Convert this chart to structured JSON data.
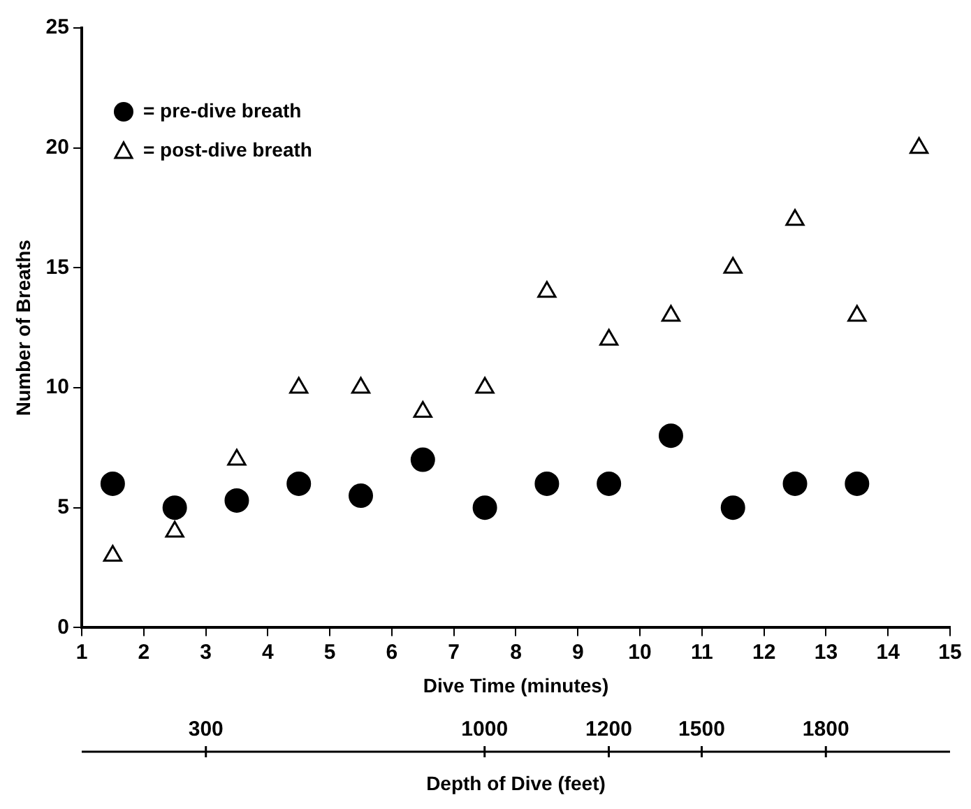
{
  "chart_data": {
    "type": "scatter",
    "xlabel": "Dive Time (minutes)",
    "ylabel": "Number of Breaths",
    "x2label": "Depth of Dive (feet)",
    "xlim": [
      1,
      15
    ],
    "xticks": [
      1,
      2,
      3,
      4,
      5,
      6,
      7,
      8,
      9,
      10,
      11,
      12,
      13,
      14,
      15
    ],
    "ylim": [
      0,
      25
    ],
    "yticks": [
      0,
      5,
      10,
      15,
      20,
      25
    ],
    "annotations": [
      "300",
      "1000",
      "1200",
      "1500",
      "1800"
    ],
    "grid": false,
    "legend": "top left",
    "series": [
      {
        "name": "= pre-dive breath",
        "color": "#000000",
        "marker": "circle",
        "x": [
          1.5,
          2.5,
          3.5,
          4.5,
          5.5,
          6.5,
          7.5,
          8.5,
          9.5,
          10.5,
          11.5,
          12.5,
          13.5
        ],
        "values": [
          6,
          5,
          5.3,
          6,
          5.5,
          7,
          5,
          6,
          6,
          8,
          5,
          6,
          6
        ]
      },
      {
        "name": "= post-dive breath",
        "color": "#000000",
        "marker": "triangle",
        "x": [
          1.5,
          2.5,
          3.5,
          4.5,
          5.5,
          6.5,
          7.5,
          8.5,
          9.5,
          10.5,
          11.5,
          12.5,
          13.5,
          14.5
        ],
        "values": [
          3,
          4,
          7,
          10,
          10,
          9,
          10,
          14,
          12,
          13,
          15,
          17,
          13,
          20
        ]
      }
    ]
  }
}
